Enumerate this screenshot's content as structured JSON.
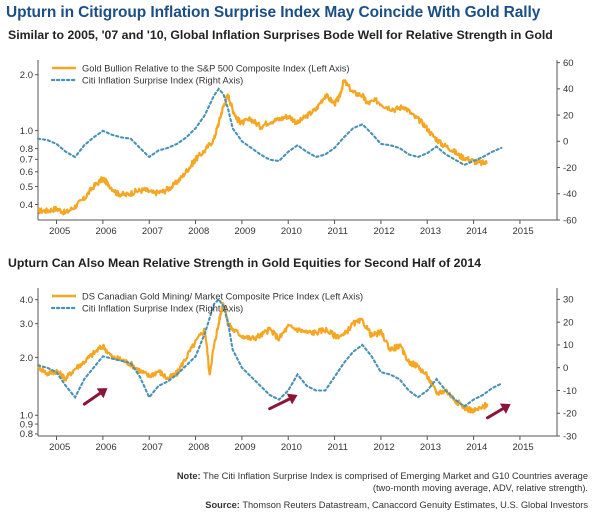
{
  "title": "Upturn in Citigroup Inflation Surprise Index May Coincide With Gold Rally",
  "note": {
    "label": "Note:",
    "line1": " The Citi Inflation Surprise Index is comprised of Emerging Market and G10 Countries average",
    "line2": "(two-month moving average, ADV, relative strength).",
    "source_label": "Source:",
    "source_text": " Thomson Reuters Datastream, Canaccord Genuity Estimates, U.S. Global Investors"
  },
  "colors": {
    "title": "#1b4f86",
    "left_series": "#f5a623",
    "left_series_top": "#f08c1f",
    "right_series": "#4a92b5",
    "arrow": "#8b1538",
    "axis": "#555555",
    "grid": "#aaaaaa"
  },
  "chart_data": [
    {
      "type": "line",
      "subtitle": "Similar to 2005, '07 and '10, Global Inflation Surprises Bode Well for Relative Strength in Gold",
      "x_ticks": [
        "2005",
        "2006",
        "2007",
        "2008",
        "2009",
        "2010",
        "2011",
        "2012",
        "2013",
        "2014",
        "2015"
      ],
      "x_range": [
        2004.6,
        2015.8
      ],
      "left_axis": {
        "scale": "log",
        "range": [
          0.33,
          2.4
        ],
        "ticks": [
          0.4,
          0.5,
          0.6,
          0.7,
          0.8,
          1.0,
          2.0
        ],
        "tick_labels": [
          "0.4",
          "0.5",
          "0.6",
          "0.7",
          "0.8",
          "1.0",
          "2.0"
        ]
      },
      "right_axis": {
        "scale": "linear",
        "range": [
          -60,
          62
        ],
        "ticks": [
          -60,
          -40,
          -20,
          0,
          20,
          40,
          60
        ],
        "tick_labels": [
          "-60",
          "-40",
          "-20",
          "0",
          "20",
          "40",
          "60"
        ]
      },
      "legend_position": "top-left",
      "series": [
        {
          "name": "Gold Bullion Relative to the S&P 500 Composite Index (Left Axis)",
          "axis": "left",
          "style": "solid",
          "x": [
            2004.6,
            2004.8,
            2005.0,
            2005.2,
            2005.4,
            2005.6,
            2005.8,
            2006.0,
            2006.1,
            2006.3,
            2006.5,
            2006.7,
            2006.9,
            2007.1,
            2007.3,
            2007.5,
            2007.7,
            2007.9,
            2008.0,
            2008.2,
            2008.4,
            2008.5,
            2008.6,
            2008.7,
            2008.8,
            2008.9,
            2009.0,
            2009.2,
            2009.4,
            2009.6,
            2009.8,
            2010.0,
            2010.2,
            2010.4,
            2010.6,
            2010.8,
            2011.0,
            2011.1,
            2011.2,
            2011.4,
            2011.6,
            2011.7,
            2011.9,
            2012.1,
            2012.3,
            2012.5,
            2012.7,
            2012.9,
            2013.1,
            2013.3,
            2013.5,
            2013.7,
            2013.9,
            2014.1,
            2014.3
          ],
          "y": [
            0.37,
            0.37,
            0.38,
            0.36,
            0.39,
            0.43,
            0.5,
            0.55,
            0.52,
            0.46,
            0.45,
            0.47,
            0.48,
            0.46,
            0.47,
            0.5,
            0.56,
            0.65,
            0.7,
            0.78,
            0.9,
            1.1,
            1.35,
            1.55,
            1.3,
            1.15,
            1.1,
            1.15,
            1.05,
            1.12,
            1.15,
            1.2,
            1.1,
            1.2,
            1.3,
            1.55,
            1.4,
            1.5,
            1.85,
            1.6,
            1.55,
            1.4,
            1.45,
            1.35,
            1.3,
            1.35,
            1.2,
            1.1,
            0.95,
            0.85,
            0.8,
            0.73,
            0.7,
            0.67,
            0.67
          ]
        },
        {
          "name": "Citi Inflation Surprise Index (Right Axis)",
          "axis": "right",
          "style": "dotted",
          "x": [
            2004.6,
            2004.8,
            2005.0,
            2005.2,
            2005.4,
            2005.6,
            2005.8,
            2006.0,
            2006.2,
            2006.4,
            2006.6,
            2006.8,
            2007.0,
            2007.2,
            2007.4,
            2007.6,
            2007.8,
            2008.0,
            2008.2,
            2008.4,
            2008.5,
            2008.6,
            2008.7,
            2008.8,
            2009.0,
            2009.2,
            2009.4,
            2009.6,
            2009.8,
            2010.0,
            2010.2,
            2010.4,
            2010.6,
            2010.8,
            2011.0,
            2011.2,
            2011.4,
            2011.6,
            2011.8,
            2012.0,
            2012.2,
            2012.4,
            2012.6,
            2012.8,
            2013.0,
            2013.2,
            2013.4,
            2013.6,
            2013.8,
            2014.0,
            2014.2,
            2014.4,
            2014.6
          ],
          "y": [
            2,
            1,
            -2,
            -8,
            -12,
            -3,
            3,
            8,
            5,
            3,
            2,
            -5,
            -12,
            -7,
            -5,
            -2,
            3,
            10,
            20,
            35,
            40,
            36,
            25,
            10,
            0,
            -5,
            -10,
            -14,
            -15,
            -8,
            -3,
            -8,
            -12,
            -10,
            -5,
            3,
            10,
            13,
            6,
            -2,
            -3,
            -5,
            -10,
            -12,
            -9,
            -4,
            -10,
            -14,
            -18,
            -15,
            -12,
            -8,
            -5
          ]
        }
      ]
    },
    {
      "type": "line",
      "subtitle": "Upturn Can Also Mean Relative Strength in Gold Equities for Second Half of 2014",
      "x_ticks": [
        "2005",
        "2006",
        "2007",
        "2008",
        "2009",
        "2010",
        "2011",
        "2012",
        "2013",
        "2014",
        "2015"
      ],
      "x_range": [
        2004.6,
        2015.8
      ],
      "left_axis": {
        "scale": "log",
        "range": [
          0.78,
          4.6
        ],
        "ticks": [
          0.8,
          0.9,
          1.0,
          2.0,
          3.0,
          4.0
        ],
        "tick_labels": [
          "0.8",
          "0.9",
          "1.0",
          "2.0",
          "3.0",
          "4.0"
        ]
      },
      "right_axis": {
        "scale": "linear",
        "range": [
          -30,
          35
        ],
        "ticks": [
          -30,
          -20,
          -10,
          0,
          10,
          20,
          30
        ],
        "tick_labels": [
          "-30",
          "-20",
          "-10",
          "0",
          "10",
          "20",
          "30"
        ]
      },
      "legend_position": "top-left",
      "series": [
        {
          "name": "DS Canadian Gold Mining/ Market Composite Price Index (Left Axis)",
          "axis": "left",
          "style": "solid",
          "x": [
            2004.6,
            2004.8,
            2005.0,
            2005.2,
            2005.4,
            2005.6,
            2005.8,
            2006.0,
            2006.2,
            2006.4,
            2006.6,
            2006.8,
            2007.0,
            2007.2,
            2007.4,
            2007.6,
            2007.8,
            2008.0,
            2008.2,
            2008.3,
            2008.4,
            2008.5,
            2008.6,
            2008.7,
            2008.8,
            2009.0,
            2009.2,
            2009.4,
            2009.6,
            2009.8,
            2010.0,
            2010.2,
            2010.4,
            2010.6,
            2010.8,
            2011.0,
            2011.2,
            2011.4,
            2011.6,
            2011.8,
            2012.0,
            2012.2,
            2012.4,
            2012.6,
            2012.8,
            2013.0,
            2013.2,
            2013.4,
            2013.6,
            2013.8,
            2014.0,
            2014.2,
            2014.3
          ],
          "y": [
            1.8,
            1.65,
            1.7,
            1.55,
            1.75,
            1.9,
            2.1,
            2.3,
            2.0,
            1.95,
            1.85,
            1.7,
            1.6,
            1.7,
            1.55,
            1.65,
            2.0,
            2.4,
            2.8,
            1.6,
            2.3,
            3.0,
            3.9,
            3.0,
            2.8,
            2.6,
            2.5,
            2.6,
            2.8,
            2.5,
            2.9,
            2.8,
            2.7,
            2.7,
            2.8,
            2.6,
            2.6,
            3.0,
            3.1,
            2.6,
            2.7,
            2.2,
            2.3,
            1.9,
            1.8,
            1.6,
            1.3,
            1.35,
            1.2,
            1.1,
            1.05,
            1.1,
            1.15
          ]
        },
        {
          "name": "Citi Inflation Surprise Index (Right Axis)",
          "axis": "right",
          "style": "dotted",
          "x": [
            2004.6,
            2004.8,
            2005.0,
            2005.2,
            2005.4,
            2005.6,
            2005.8,
            2006.0,
            2006.2,
            2006.4,
            2006.6,
            2006.8,
            2007.0,
            2007.2,
            2007.4,
            2007.6,
            2007.8,
            2008.0,
            2008.2,
            2008.4,
            2008.5,
            2008.6,
            2008.7,
            2008.8,
            2009.0,
            2009.2,
            2009.4,
            2009.6,
            2009.8,
            2010.0,
            2010.2,
            2010.4,
            2010.6,
            2010.8,
            2011.0,
            2011.2,
            2011.4,
            2011.6,
            2011.8,
            2012.0,
            2012.2,
            2012.4,
            2012.6,
            2012.8,
            2013.0,
            2013.2,
            2013.4,
            2013.6,
            2013.8,
            2014.0,
            2014.2,
            2014.4,
            2014.6
          ],
          "y": [
            1,
            0,
            -2,
            -8,
            -13,
            -5,
            0,
            5,
            4,
            3,
            2,
            -4,
            -13,
            -8,
            -6,
            -3,
            1,
            5,
            15,
            28,
            30,
            27,
            20,
            8,
            0,
            -4,
            -8,
            -12,
            -14,
            -10,
            -3,
            -8,
            -10,
            -10,
            -4,
            2,
            7,
            10,
            5,
            -2,
            -3,
            -5,
            -10,
            -13,
            -10,
            -5,
            -10,
            -14,
            -17,
            -14,
            -12,
            -9,
            -7
          ]
        }
      ],
      "arrows": [
        {
          "from": [
            2005.6,
            -16
          ],
          "to": [
            2006.1,
            -9
          ]
        },
        {
          "from": [
            2009.6,
            -18
          ],
          "to": [
            2010.2,
            -12
          ]
        },
        {
          "from": [
            2014.3,
            -22
          ],
          "to": [
            2014.8,
            -16
          ]
        }
      ]
    }
  ]
}
